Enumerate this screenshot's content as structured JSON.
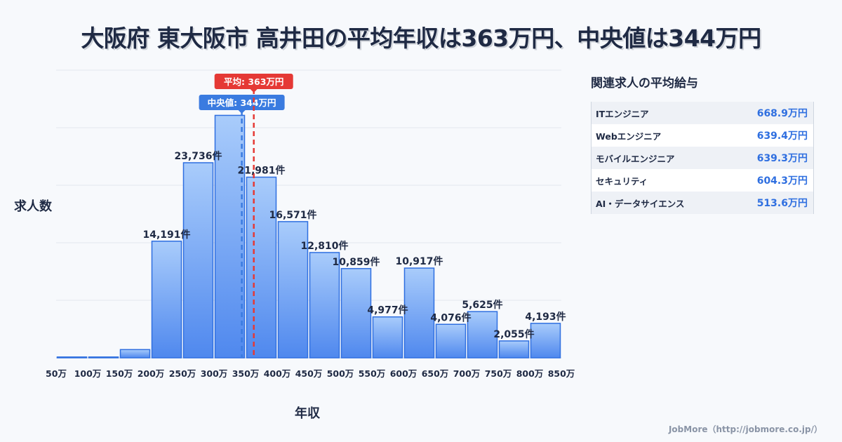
{
  "title": "大阪府 東大阪市 高井田の平均年収は363万円、中央値は344万円",
  "chart_data": {
    "type": "bar",
    "xlabel": "年収",
    "ylabel": "求人数",
    "x_ticks": [
      "50万",
      "100万",
      "150万",
      "200万",
      "250万",
      "300万",
      "350万",
      "400万",
      "450万",
      "500万",
      "550万",
      "600万",
      "650万",
      "700万",
      "750万",
      "800万",
      "850万"
    ],
    "bins": [
      {
        "from": 50,
        "to": 100,
        "value": 100,
        "label": ""
      },
      {
        "from": 100,
        "to": 150,
        "value": 100,
        "label": ""
      },
      {
        "from": 150,
        "to": 200,
        "value": 1000,
        "label": ""
      },
      {
        "from": 200,
        "to": 250,
        "value": 14191,
        "label": "14,191件"
      },
      {
        "from": 250,
        "to": 300,
        "value": 23736,
        "label": "23,736件"
      },
      {
        "from": 300,
        "to": 350,
        "value": 29500,
        "label": ""
      },
      {
        "from": 350,
        "to": 400,
        "value": 21981,
        "label": "21,981件"
      },
      {
        "from": 400,
        "to": 450,
        "value": 16571,
        "label": "16,571件"
      },
      {
        "from": 450,
        "to": 500,
        "value": 12810,
        "label": "12,810件"
      },
      {
        "from": 500,
        "to": 550,
        "value": 10859,
        "label": "10,859件"
      },
      {
        "from": 550,
        "to": 600,
        "value": 4977,
        "label": "4,977件"
      },
      {
        "from": 600,
        "to": 650,
        "value": 10917,
        "label": "10,917件"
      },
      {
        "from": 650,
        "to": 700,
        "value": 4076,
        "label": "4,076件"
      },
      {
        "from": 700,
        "to": 750,
        "value": 5625,
        "label": "5,625件"
      },
      {
        "from": 750,
        "to": 800,
        "value": 2055,
        "label": "2,055件"
      },
      {
        "from": 800,
        "to": 850,
        "value": 4193,
        "label": "4,193件"
      }
    ],
    "xlim": [
      50,
      850
    ],
    "ylim": [
      0,
      35000
    ],
    "grid": true,
    "mean": {
      "value": 363,
      "label": "平均: 363万円",
      "color": "#e53935"
    },
    "median": {
      "value": 344,
      "label": "中央値: 344万円",
      "color": "#3a7be0"
    },
    "bar_color": "#5b93ef",
    "bar_border": "#2f6fe0"
  },
  "side": {
    "title": "関連求人の平均給与",
    "items": [
      {
        "name": "ITエンジニア",
        "value": "668.9万円"
      },
      {
        "name": "Webエンジニア",
        "value": "639.4万円"
      },
      {
        "name": "モバイルエンジニア",
        "value": "639.3万円"
      },
      {
        "name": "セキュリティ",
        "value": "604.3万円"
      },
      {
        "name": "AI・データサイエンス",
        "value": "513.6万円"
      }
    ]
  },
  "footer": "JobMore（http://jobmore.co.jp/）"
}
